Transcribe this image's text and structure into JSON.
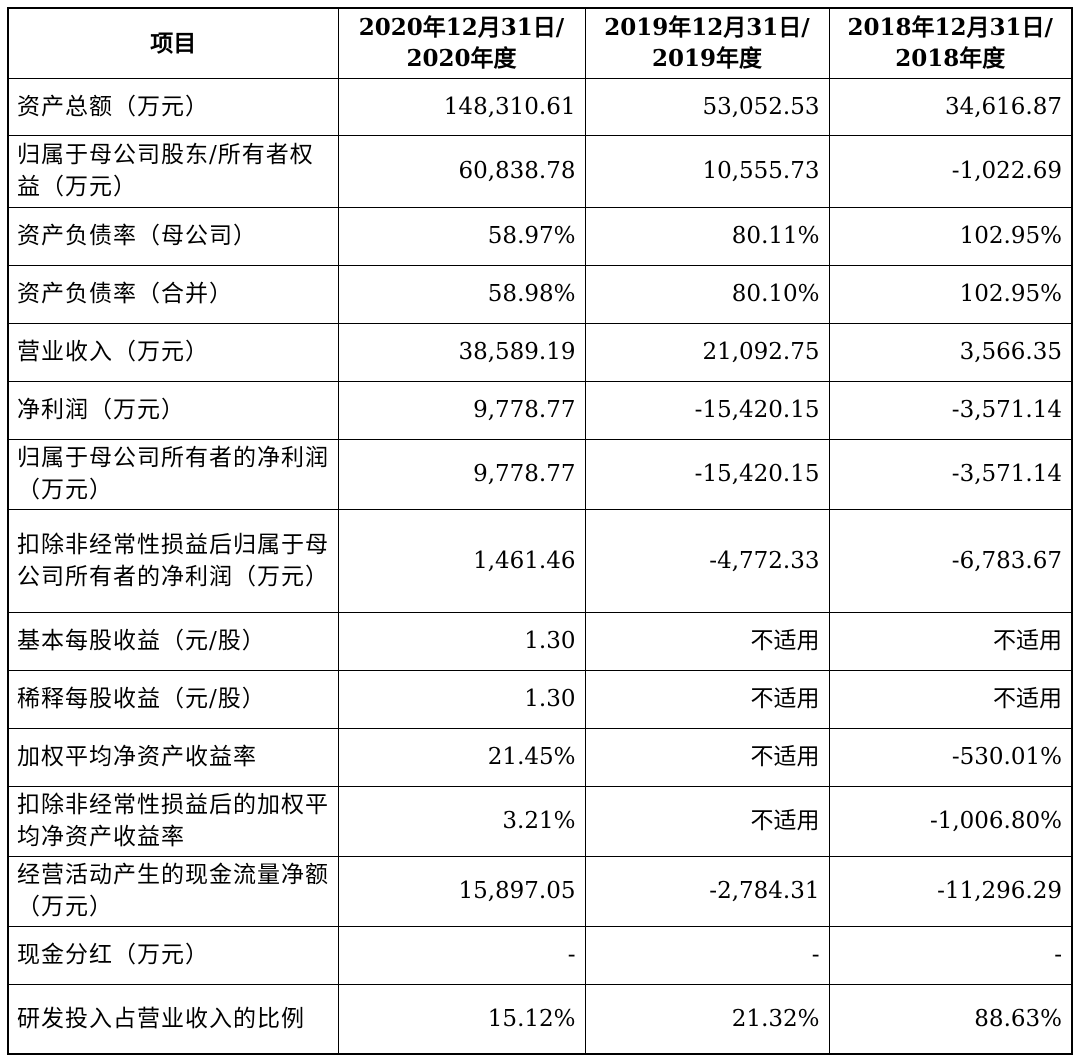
{
  "headers": [
    {
      "line1": "项目",
      "line2": ""
    },
    {
      "line1": "2020年12月31日/",
      "line2": "2020年度"
    },
    {
      "line1": "2019年12月31日/",
      "line2": "2019年度"
    },
    {
      "line1": "2018年12月31日/",
      "line2": "2018年度"
    }
  ],
  "rows": [
    {
      "label": "资产总额（万元）",
      "v2020": "148,310.61",
      "v2019": "53,052.53",
      "v2018": "34,616.87"
    },
    {
      "label": "归属于母公司股东/所有者权益（万元）",
      "v2020": "60,838.78",
      "v2019": "10,555.73",
      "v2018": "-1,022.69"
    },
    {
      "label": "资产负债率（母公司）",
      "v2020": "58.97%",
      "v2019": "80.11%",
      "v2018": "102.95%"
    },
    {
      "label": "资产负债率（合并）",
      "v2020": "58.98%",
      "v2019": "80.10%",
      "v2018": "102.95%"
    },
    {
      "label": "营业收入（万元）",
      "v2020": "38,589.19",
      "v2019": "21,092.75",
      "v2018": "3,566.35"
    },
    {
      "label": "净利润（万元）",
      "v2020": "9,778.77",
      "v2019": "-15,420.15",
      "v2018": "-3,571.14"
    },
    {
      "label": "归属于母公司所有者的净利润（万元）",
      "v2020": "9,778.77",
      "v2019": "-15,420.15",
      "v2018": "-3,571.14"
    },
    {
      "label": "扣除非经常性损益后归属于母公司所有者的净利润（万元）",
      "v2020": "1,461.46",
      "v2019": "-4,772.33",
      "v2018": "-6,783.67"
    },
    {
      "label": "基本每股收益（元/股）",
      "v2020": "1.30",
      "v2019": "不适用",
      "v2018": "不适用"
    },
    {
      "label": "稀释每股收益（元/股）",
      "v2020": "1.30",
      "v2019": "不适用",
      "v2018": "不适用"
    },
    {
      "label": "加权平均净资产收益率",
      "v2020": "21.45%",
      "v2019": "不适用",
      "v2018": "-530.01%"
    },
    {
      "label": "扣除非经常性损益后的加权平均净资产收益率",
      "v2020": "3.21%",
      "v2019": "不适用",
      "v2018": "-1,006.80%"
    },
    {
      "label": "经营活动产生的现金流量净额（万元）",
      "v2020": "15,897.05",
      "v2019": "-2,784.31",
      "v2018": "-11,296.29"
    },
    {
      "label": "现金分红（万元）",
      "v2020": "-",
      "v2019": "-",
      "v2018": "-"
    },
    {
      "label": "研发投入占营业收入的比例",
      "v2020": "15.12%",
      "v2019": "21.32%",
      "v2018": "88.63%"
    }
  ]
}
